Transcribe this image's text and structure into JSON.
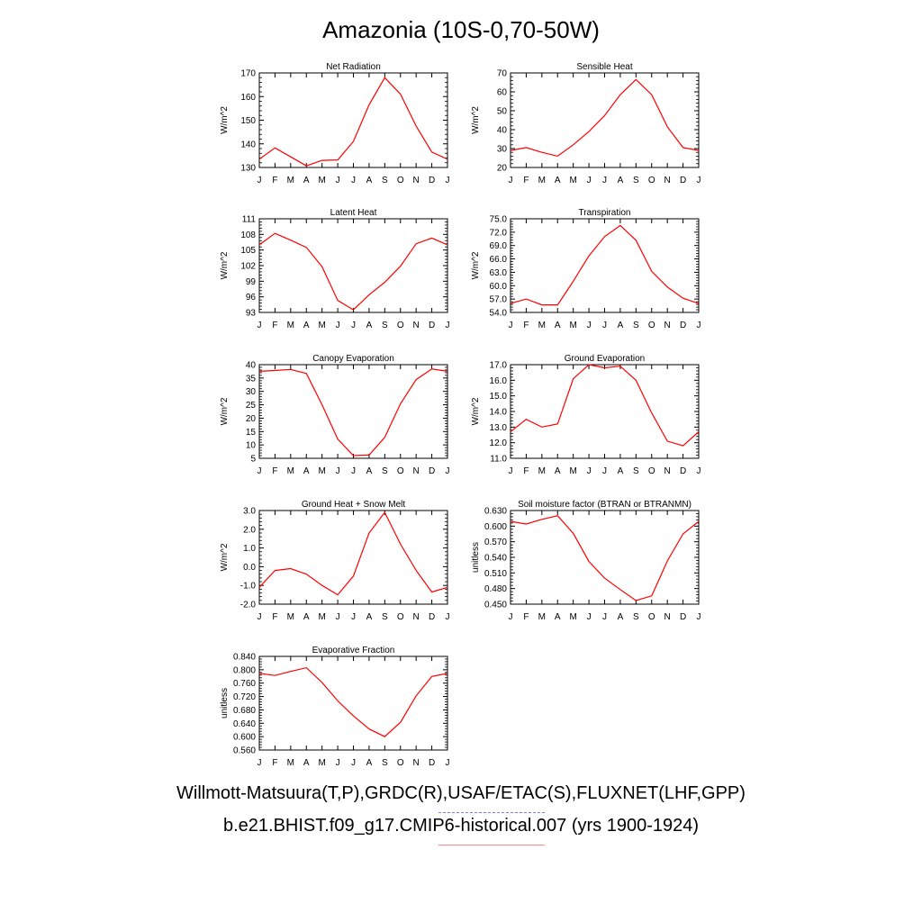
{
  "page": {
    "title": "Amazonia (10S-0,70-50W)"
  },
  "legend": {
    "observed_label": "Willmott-Matsuura(T,P),GRDC(R),USAF/ETAC(S),FLUXNET(LHF,GPP)",
    "observed_color": "#7a7aff",
    "model_label": "b.e21.BHIST.f09_g17.CMIP6-historical.007 (yrs 1900-1924)",
    "model_color": "#ff8a8a"
  },
  "chart_data": [
    {
      "type": "line",
      "title": "Net Radiation",
      "ylabel": "W/m^2",
      "xlabel": "",
      "x": [
        "J",
        "F",
        "M",
        "A",
        "M",
        "J",
        "J",
        "A",
        "S",
        "O",
        "N",
        "D",
        "J"
      ],
      "ylim": [
        130,
        170
      ],
      "yticks": [
        "130",
        "140",
        "150",
        "160",
        "170"
      ],
      "series": [
        {
          "color": "#ff0000",
          "values": [
            133.5,
            138.3,
            134.5,
            130.7,
            133.0,
            133.2,
            141.0,
            156.5,
            168.0,
            161.0,
            147.5,
            136.5,
            133.5
          ]
        }
      ]
    },
    {
      "type": "line",
      "title": "Sensible Heat",
      "ylabel": "W/m^2",
      "xlabel": "",
      "x": [
        "J",
        "F",
        "M",
        "A",
        "M",
        "J",
        "J",
        "A",
        "S",
        "O",
        "N",
        "D",
        "J"
      ],
      "ylim": [
        20,
        70
      ],
      "yticks": [
        "20",
        "30",
        "40",
        "50",
        "60",
        "70"
      ],
      "series": [
        {
          "color": "#ff0000",
          "values": [
            29.0,
            30.5,
            28.0,
            26.0,
            32.0,
            39.0,
            47.5,
            58.5,
            66.5,
            58.5,
            41.5,
            30.5,
            29.0
          ]
        }
      ]
    },
    {
      "type": "line",
      "title": "Latent Heat",
      "ylabel": "W/m^2",
      "xlabel": "",
      "x": [
        "J",
        "F",
        "M",
        "A",
        "M",
        "J",
        "J",
        "A",
        "S",
        "O",
        "N",
        "D",
        "J"
      ],
      "ylim": [
        93,
        111
      ],
      "yticks": [
        "93",
        "96",
        "99",
        "102",
        "105",
        "108",
        "111"
      ],
      "series": [
        {
          "color": "#ff0000",
          "values": [
            106.0,
            108.2,
            106.9,
            105.5,
            101.8,
            95.3,
            93.5,
            96.4,
            98.8,
            101.9,
            106.2,
            107.3,
            106.0
          ]
        }
      ]
    },
    {
      "type": "line",
      "title": "Transpiration",
      "ylabel": "W/m^2",
      "xlabel": "",
      "x": [
        "J",
        "F",
        "M",
        "A",
        "M",
        "J",
        "J",
        "A",
        "S",
        "O",
        "N",
        "D",
        "J"
      ],
      "ylim": [
        54,
        75
      ],
      "yticks": [
        "54.0",
        "57.0",
        "60.0",
        "63.0",
        "66.0",
        "69.0",
        "72.0",
        "75.0"
      ],
      "series": [
        {
          "color": "#ff0000",
          "values": [
            56.0,
            57.0,
            55.7,
            55.7,
            61.0,
            66.7,
            71.0,
            73.5,
            70.2,
            63.2,
            59.7,
            57.2,
            56.0
          ]
        }
      ]
    },
    {
      "type": "line",
      "title": "Canopy Evaporation",
      "ylabel": "W/m^2",
      "xlabel": "",
      "x": [
        "J",
        "F",
        "M",
        "A",
        "M",
        "J",
        "J",
        "A",
        "S",
        "O",
        "N",
        "D",
        "J"
      ],
      "ylim": [
        5,
        40
      ],
      "yticks": [
        "5",
        "10",
        "15",
        "20",
        "25",
        "30",
        "35",
        "40"
      ],
      "series": [
        {
          "color": "#ff0000",
          "values": [
            37.5,
            37.8,
            38.2,
            36.7,
            25.0,
            12.2,
            6.0,
            6.2,
            12.8,
            25.4,
            34.4,
            38.4,
            37.5
          ]
        }
      ]
    },
    {
      "type": "line",
      "title": "Ground Evaporation",
      "ylabel": "W/m^2",
      "xlabel": "",
      "x": [
        "J",
        "F",
        "M",
        "A",
        "M",
        "J",
        "J",
        "A",
        "S",
        "O",
        "N",
        "D",
        "J"
      ],
      "ylim": [
        11,
        17
      ],
      "yticks": [
        "11.0",
        "12.0",
        "13.0",
        "14.0",
        "15.0",
        "16.0",
        "17.0"
      ],
      "series": [
        {
          "color": "#ff0000",
          "values": [
            12.7,
            13.5,
            13.0,
            13.2,
            16.1,
            17.0,
            16.8,
            16.9,
            16.0,
            13.9,
            12.1,
            11.8,
            12.7
          ]
        }
      ]
    },
    {
      "type": "line",
      "title": "Ground Heat + Snow Melt",
      "ylabel": "W/m^2",
      "xlabel": "",
      "x": [
        "J",
        "F",
        "M",
        "A",
        "M",
        "J",
        "J",
        "A",
        "S",
        "O",
        "N",
        "D",
        "J"
      ],
      "ylim": [
        -2,
        3
      ],
      "yticks": [
        "-2.0",
        "-1.0",
        "0.0",
        "1.0",
        "2.0",
        "3.0"
      ],
      "series": [
        {
          "color": "#ff0000",
          "values": [
            -1.1,
            -0.2,
            -0.1,
            -0.4,
            -1.0,
            -1.5,
            -0.5,
            1.8,
            2.9,
            1.2,
            -0.2,
            -1.35,
            -1.1
          ]
        }
      ]
    },
    {
      "type": "line",
      "title": "Soil moisture factor (BTRAN or BTRANMN)",
      "ylabel": "unitless",
      "xlabel": "",
      "x": [
        "J",
        "F",
        "M",
        "A",
        "M",
        "J",
        "J",
        "A",
        "S",
        "O",
        "N",
        "D",
        "J"
      ],
      "ylim": [
        0.45,
        0.63
      ],
      "yticks": [
        "0.450",
        "0.480",
        "0.510",
        "0.540",
        "0.570",
        "0.600",
        "0.630"
      ],
      "series": [
        {
          "color": "#ff0000",
          "values": [
            0.609,
            0.604,
            0.613,
            0.62,
            0.586,
            0.532,
            0.5,
            0.478,
            0.457,
            0.466,
            0.533,
            0.585,
            0.609
          ]
        }
      ]
    },
    {
      "type": "line",
      "title": "Evaporative Fraction",
      "ylabel": "unitless",
      "xlabel": "",
      "x": [
        "J",
        "F",
        "M",
        "A",
        "M",
        "J",
        "J",
        "A",
        "S",
        "O",
        "N",
        "D",
        "J"
      ],
      "ylim": [
        0.56,
        0.84
      ],
      "yticks": [
        "0.560",
        "0.600",
        "0.640",
        "0.680",
        "0.720",
        "0.760",
        "0.800",
        "0.840"
      ],
      "series": [
        {
          "color": "#ff0000",
          "values": [
            0.789,
            0.783,
            0.795,
            0.806,
            0.762,
            0.707,
            0.662,
            0.623,
            0.6,
            0.643,
            0.722,
            0.78,
            0.789
          ]
        }
      ]
    }
  ]
}
